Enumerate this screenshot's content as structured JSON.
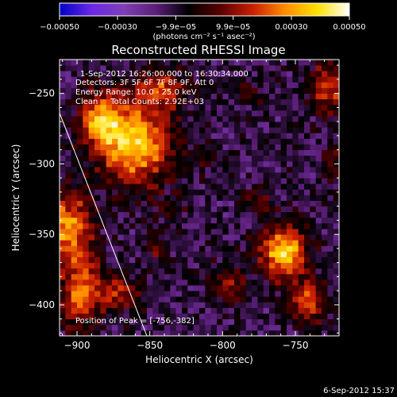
{
  "chart_data": {
    "type": "heatmap",
    "title": "Reconstructed RHESSI Image",
    "xlabel": "Heliocentric X (arcsec)",
    "ylabel": "Heliocentric Y (arcsec)",
    "xlim": [
      -912,
      -720
    ],
    "ylim": [
      -422,
      -226
    ],
    "xticks": [
      -900,
      -850,
      -800,
      -750
    ],
    "yticks": [
      -250,
      -300,
      -350,
      -400
    ],
    "xtick_labels": [
      "−900",
      "−850",
      "−800",
      "−750"
    ],
    "ytick_labels": [
      "−250",
      "−300",
      "−350",
      "−400"
    ],
    "colorbar": {
      "range": [
        -0.0005,
        0.0005
      ],
      "ticks": [
        -0.0005,
        -0.0003,
        -9.9e-05,
        9.9e-05,
        0.0003,
        0.0005
      ],
      "tick_labels": [
        "−0.00050",
        "−0.00030",
        "−9.9e−05",
        "9.9e−05",
        "0.00030",
        "0.00050"
      ],
      "units_label": "(photons cm⁻² s⁻¹ asec⁻²)"
    },
    "info_lines": [
      "1-Sep-2012 16:26:00.000 to 16:30:34.000",
      "Detectors: 3F 5F 6F 7F 8F 9F, Att 0",
      "Energy Range: 10.0 - 25.0 keV",
      "Clean     Total Counts: 2.92E+03"
    ],
    "peak_label": "Position of Peak = [-756,-382]",
    "peak": [
      -756,
      -382
    ],
    "limb_line": [
      [
        -912,
        -264
      ],
      [
        -852,
        -422
      ]
    ],
    "sources": [
      {
        "x": -860,
        "y": -285,
        "sx": 17,
        "sy": 20,
        "amp": 0.0005
      },
      {
        "x": -884,
        "y": -268,
        "sx": 10,
        "sy": 14,
        "amp": 0.00038
      },
      {
        "x": -842,
        "y": -247,
        "sx": 11,
        "sy": 9,
        "amp": 0.0003
      },
      {
        "x": -905,
        "y": -345,
        "sx": 11,
        "sy": 18,
        "amp": 0.0004
      },
      {
        "x": -898,
        "y": -392,
        "sx": 11,
        "sy": 18,
        "amp": 0.00032
      },
      {
        "x": -872,
        "y": -390,
        "sx": 12,
        "sy": 10,
        "amp": 0.00022
      },
      {
        "x": -846,
        "y": -360,
        "sx": 6,
        "sy": 8,
        "amp": 0.00014
      },
      {
        "x": -835,
        "y": -332,
        "sx": 6,
        "sy": 6,
        "amp": 0.00012
      },
      {
        "x": -783,
        "y": -250,
        "sx": 7,
        "sy": 6,
        "amp": 0.00012
      },
      {
        "x": -775,
        "y": -325,
        "sx": 8,
        "sy": 7,
        "amp": 0.00016
      },
      {
        "x": -758,
        "y": -362,
        "sx": 11,
        "sy": 13,
        "amp": 0.0005
      },
      {
        "x": -742,
        "y": -398,
        "sx": 9,
        "sy": 11,
        "amp": 0.0003
      },
      {
        "x": -796,
        "y": -385,
        "sx": 9,
        "sy": 9,
        "amp": 0.00022
      },
      {
        "x": -728,
        "y": -246,
        "sx": 8,
        "sy": 13,
        "amp": 0.00032
      },
      {
        "x": -725,
        "y": -300,
        "sx": 6,
        "sy": 9,
        "amp": 0.00012
      },
      {
        "x": -812,
        "y": -295,
        "sx": 7,
        "sy": 7,
        "amp": 0.0001
      }
    ],
    "colorbar_colors": [
      "#0000c8",
      "#6a28e6",
      "#7f3fb8",
      "#5a1e78",
      "#000000",
      "#5a0000",
      "#c81e00",
      "#ff8c00",
      "#ffe000",
      "#ffffff"
    ]
  },
  "timestamp": "6-Sep-2012 15:37"
}
